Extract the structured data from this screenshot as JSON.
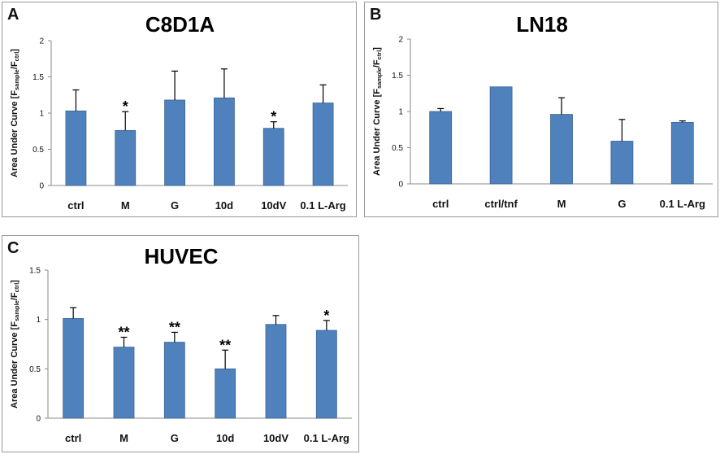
{
  "chart_data": [
    {
      "type": "bar",
      "panel": "A",
      "title": "C8D1A",
      "ylabel_main": "Area Under Curve [F",
      "ylabel_sub1": "sample",
      "ylabel_mid": "/F",
      "ylabel_sub2": "ctrl",
      "ylabel_end": "]",
      "ylim": [
        0,
        2
      ],
      "yticks": [
        "0",
        "0.5",
        "1",
        "1.5",
        "2"
      ],
      "categories": [
        "ctrl",
        "M",
        "G",
        "10d",
        "10dV",
        "0.1 L-Arg"
      ],
      "values": [
        1.03,
        0.76,
        1.18,
        1.21,
        0.79,
        1.14
      ],
      "errors": [
        0.29,
        0.26,
        0.4,
        0.4,
        0.09,
        0.25
      ],
      "significance": [
        "",
        "*",
        "",
        "",
        "*",
        ""
      ],
      "bar_color": "#4f81bd",
      "grid": false,
      "legend": "none"
    },
    {
      "type": "bar",
      "panel": "B",
      "title": "LN18",
      "ylabel_main": "Area Under Curve [F",
      "ylabel_sub1": "sample",
      "ylabel_mid": "/F",
      "ylabel_sub2": "ctrl",
      "ylabel_end": "]",
      "ylim": [
        0,
        2
      ],
      "yticks": [
        "0",
        "0.5",
        "1",
        "1.5",
        "2"
      ],
      "categories": [
        "ctrl",
        "ctrl/tnf",
        "M",
        "G",
        "0.1 L-Arg"
      ],
      "values": [
        1.0,
        1.34,
        0.96,
        0.59,
        0.85
      ],
      "errors": [
        0.04,
        0.0,
        0.23,
        0.3,
        0.02
      ],
      "significance": [
        "",
        "",
        "",
        "",
        ""
      ],
      "bar_color": "#4f81bd",
      "grid": false,
      "legend": "none"
    },
    {
      "type": "bar",
      "panel": "C",
      "title": "HUVEC",
      "ylabel_main": "Area Under Curve [F",
      "ylabel_sub1": "sample",
      "ylabel_mid": "/F",
      "ylabel_sub2": "ctrl",
      "ylabel_end": "]",
      "ylim": [
        0,
        1.5
      ],
      "yticks": [
        "0",
        "0.5",
        "1",
        "1.5"
      ],
      "categories": [
        "ctrl",
        "M",
        "G",
        "10d",
        "10dV",
        "0.1 L-Arg"
      ],
      "values": [
        1.01,
        0.72,
        0.77,
        0.5,
        0.95,
        0.89
      ],
      "errors": [
        0.11,
        0.1,
        0.1,
        0.19,
        0.09,
        0.1
      ],
      "significance": [
        "",
        "**",
        "**",
        "**",
        "",
        "*"
      ],
      "bar_color": "#4f81bd",
      "grid": false,
      "legend": "none"
    }
  ]
}
